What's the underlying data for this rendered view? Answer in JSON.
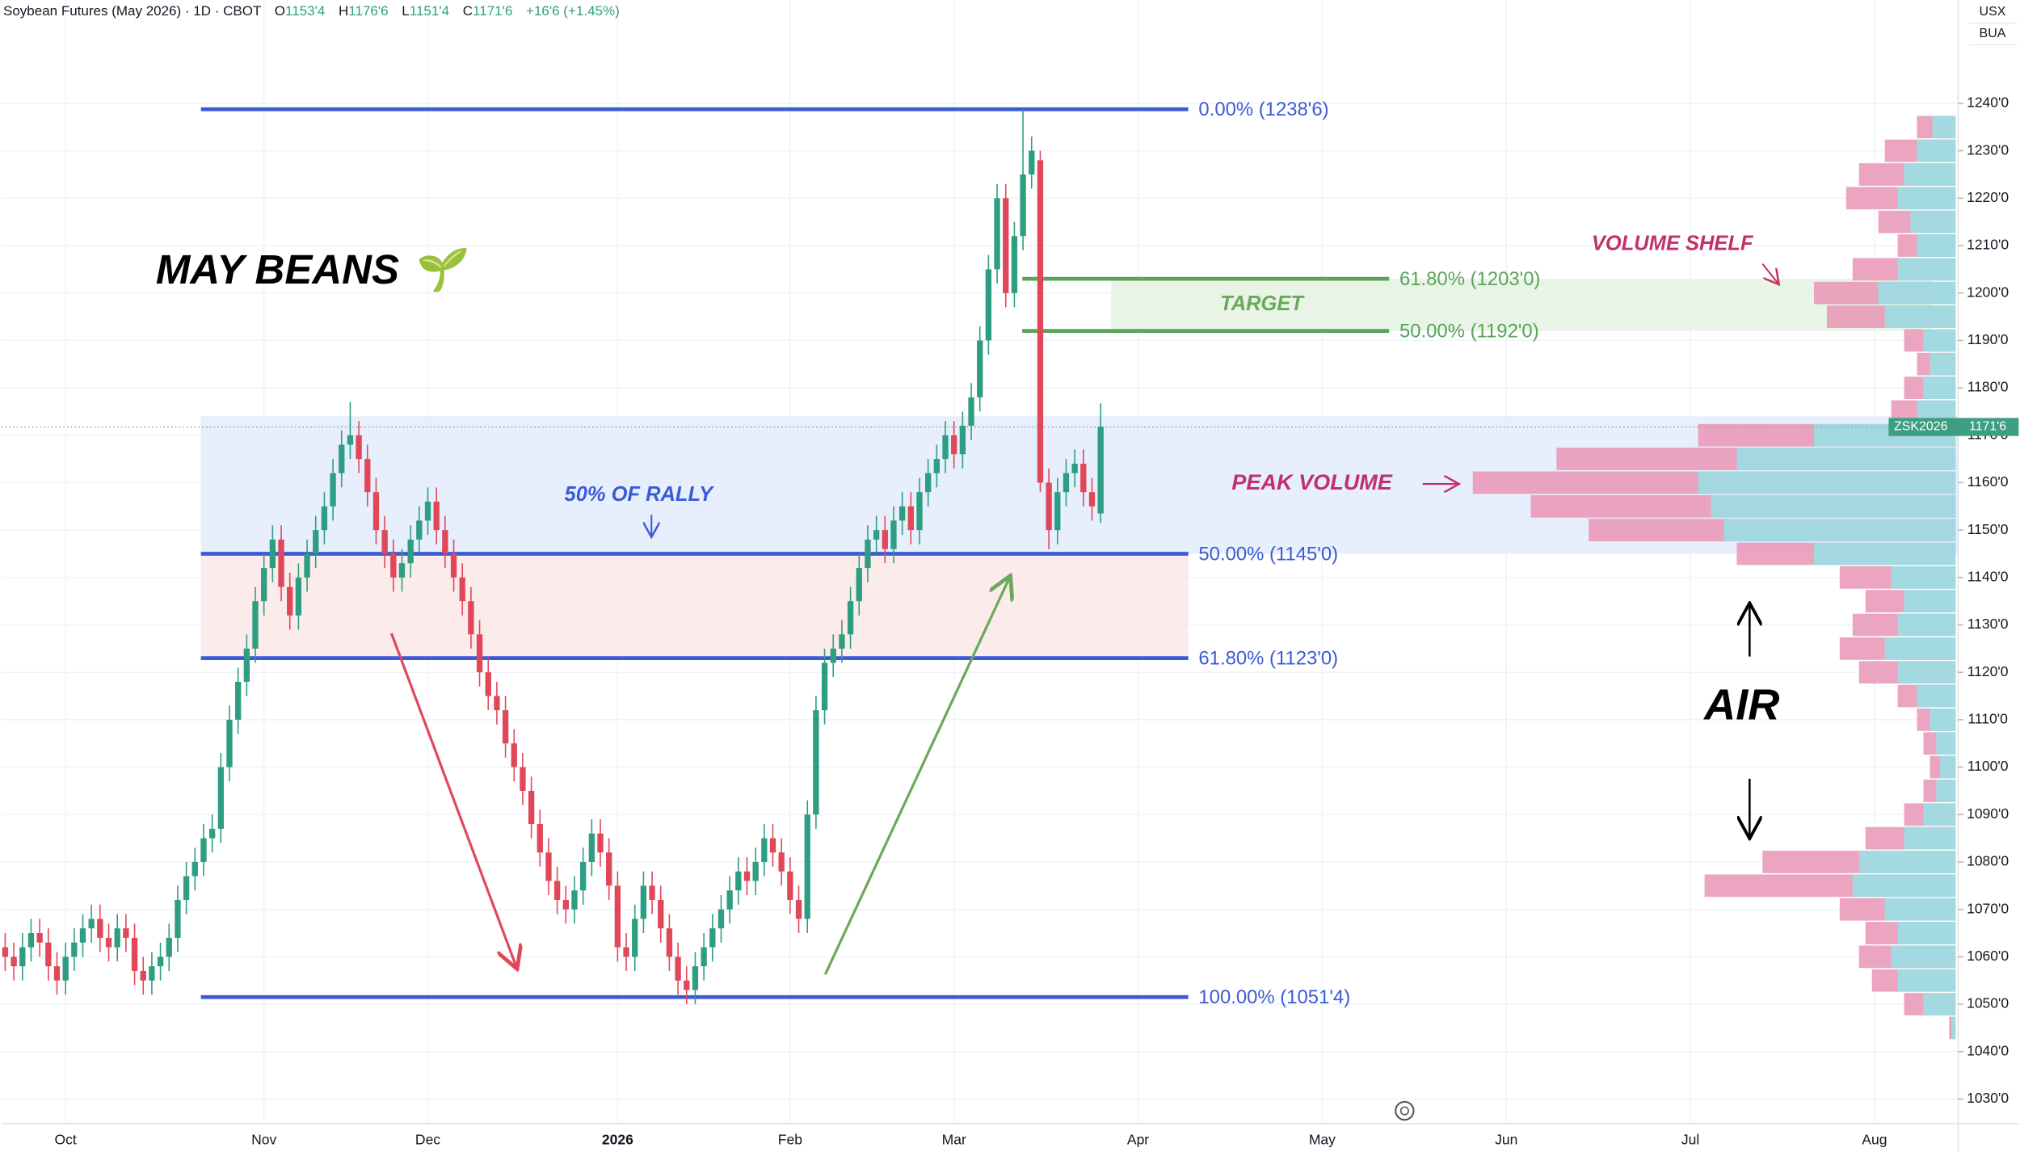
{
  "header": {
    "title": "Soybean Futures (May 2026) · 1D · CBOT",
    "ohlc": [
      {
        "key": "O",
        "value": "1153'4"
      },
      {
        "key": "H",
        "value": "1176'6"
      },
      {
        "key": "L",
        "value": "1151'4"
      },
      {
        "key": "C",
        "value": "1171'6"
      }
    ],
    "change": "+16'6 (+1.45%)"
  },
  "scale_labels": [
    "USX",
    "BUA"
  ],
  "chart_data": {
    "type": "candlestick",
    "categories": [
      null,
      null,
      null,
      null,
      null,
      null,
      null,
      "Oct",
      null,
      null,
      null,
      null,
      null,
      null,
      null,
      null,
      null,
      null,
      null,
      null,
      null,
      null,
      null,
      null,
      null,
      null,
      null,
      null,
      null,
      null,
      "Nov",
      null,
      null,
      null,
      null,
      null,
      null,
      null,
      null,
      null,
      null,
      null,
      null,
      null,
      null,
      null,
      null,
      null,
      null,
      "Dec",
      null,
      null,
      null,
      null,
      null,
      null,
      null,
      null,
      null,
      null,
      null,
      null,
      null,
      null,
      null,
      null,
      null,
      null,
      null,
      null,
      null,
      "2026",
      null,
      null,
      null,
      null,
      null,
      null,
      null,
      null,
      null,
      null,
      null,
      null,
      null,
      null,
      null,
      null,
      null,
      null,
      null,
      "Feb",
      null,
      null,
      null,
      null,
      null,
      null,
      null,
      null,
      null,
      null,
      null,
      null,
      null,
      null,
      null,
      null,
      null,
      null,
      "Mar",
      null,
      null,
      null,
      null,
      null,
      null,
      null,
      null,
      null,
      null,
      null,
      null,
      null,
      null,
      null,
      null,
      null
    ],
    "future_categories": [
      "Apr",
      "May",
      "Jun",
      "Jul",
      "Aug"
    ],
    "open": [
      1062,
      1060,
      1058,
      1062,
      1065,
      1063,
      1058,
      1055,
      1060,
      1063,
      1066,
      1068,
      1064,
      1062,
      1066,
      1064,
      1057,
      1055,
      1058,
      1060,
      1064,
      1072,
      1077,
      1080,
      1085,
      1087,
      1100,
      1110,
      1118,
      1125,
      1135,
      1142,
      1148,
      1138,
      1132,
      1140,
      1145,
      1150,
      1155,
      1162,
      1168,
      1170,
      1165,
      1158,
      1150,
      1145,
      1140,
      1143,
      1148,
      1152,
      1156,
      1150,
      1145,
      1140,
      1135,
      1128,
      1120,
      1115,
      1112,
      1105,
      1100,
      1095,
      1088,
      1082,
      1076,
      1072,
      1070,
      1074,
      1080,
      1086,
      1082,
      1075,
      1062,
      1060,
      1068,
      1075,
      1072,
      1066,
      1060,
      1055,
      1053,
      1058,
      1062,
      1066,
      1070,
      1074,
      1078,
      1076,
      1080,
      1085,
      1082,
      1078,
      1072,
      1068,
      1090,
      1112,
      1122,
      1125,
      1128,
      1135,
      1142,
      1148,
      1150,
      1146,
      1152,
      1155,
      1150,
      1158,
      1162,
      1165,
      1170,
      1166,
      1172,
      1178,
      1190,
      1205,
      1220,
      1200,
      1212,
      1225,
      1228,
      1160,
      1150,
      1158,
      1162,
      1164,
      1158,
      1153.5
    ],
    "high": [
      1065,
      1063,
      1065,
      1068,
      1068,
      1066,
      1061,
      1063,
      1066,
      1069,
      1071,
      1071,
      1067,
      1069,
      1069,
      1067,
      1060,
      1061,
      1063,
      1067,
      1075,
      1080,
      1083,
      1088,
      1090,
      1103,
      1113,
      1121,
      1128,
      1138,
      1145,
      1151,
      1151,
      1141,
      1143,
      1148,
      1153,
      1158,
      1165,
      1171,
      1177,
      1173,
      1168,
      1161,
      1153,
      1148,
      1146,
      1151,
      1155,
      1159,
      1159,
      1153,
      1148,
      1143,
      1138,
      1131,
      1123,
      1118,
      1115,
      1108,
      1103,
      1098,
      1091,
      1085,
      1079,
      1075,
      1077,
      1083,
      1089,
      1089,
      1085,
      1078,
      1065,
      1071,
      1078,
      1078,
      1075,
      1069,
      1063,
      1058,
      1061,
      1065,
      1069,
      1073,
      1077,
      1081,
      1081,
      1083,
      1088,
      1088,
      1085,
      1081,
      1075,
      1093,
      1115,
      1125,
      1128,
      1131,
      1138,
      1145,
      1151,
      1153,
      1153,
      1155,
      1158,
      1158,
      1161,
      1165,
      1168,
      1173,
      1173,
      1175,
      1181,
      1193,
      1208,
      1223,
      1223,
      1215,
      1238.75,
      1233,
      1230,
      1163,
      1161,
      1165,
      1167,
      1167,
      1161,
      1176.75
    ],
    "low": [
      1057,
      1055,
      1055,
      1059,
      1060,
      1055,
      1052,
      1052,
      1057,
      1060,
      1063,
      1061,
      1059,
      1059,
      1061,
      1054,
      1052,
      1052,
      1055,
      1057,
      1061,
      1069,
      1074,
      1077,
      1082,
      1084,
      1097,
      1107,
      1115,
      1122,
      1132,
      1139,
      1135,
      1129,
      1129,
      1137,
      1142,
      1147,
      1152,
      1159,
      1165,
      1162,
      1155,
      1147,
      1142,
      1137,
      1137,
      1140,
      1145,
      1149,
      1147,
      1142,
      1137,
      1132,
      1125,
      1117,
      1112,
      1109,
      1102,
      1097,
      1092,
      1085,
      1079,
      1073,
      1069,
      1067,
      1067,
      1071,
      1077,
      1079,
      1072,
      1059,
      1057,
      1057,
      1065,
      1069,
      1063,
      1057,
      1052,
      1050,
      1050,
      1055,
      1059,
      1063,
      1067,
      1071,
      1073,
      1073,
      1077,
      1079,
      1075,
      1069,
      1065,
      1065,
      1087,
      1109,
      1119,
      1122,
      1125,
      1132,
      1139,
      1145,
      1143,
      1143,
      1149,
      1147,
      1147,
      1155,
      1159,
      1162,
      1163,
      1163,
      1169,
      1175,
      1187,
      1202,
      1197,
      1197,
      1209,
      1222,
      1158,
      1146,
      1147,
      1155,
      1159,
      1155,
      1152,
      1151.5
    ],
    "close": [
      1060,
      1058,
      1062,
      1065,
      1063,
      1058,
      1055,
      1060,
      1063,
      1066,
      1068,
      1064,
      1062,
      1066,
      1064,
      1057,
      1055,
      1058,
      1060,
      1064,
      1072,
      1077,
      1080,
      1085,
      1087,
      1100,
      1110,
      1118,
      1125,
      1135,
      1142,
      1148,
      1138,
      1132,
      1140,
      1145,
      1150,
      1155,
      1162,
      1168,
      1170,
      1165,
      1158,
      1150,
      1145,
      1140,
      1143,
      1148,
      1152,
      1156,
      1150,
      1145,
      1140,
      1135,
      1128,
      1120,
      1115,
      1112,
      1105,
      1100,
      1095,
      1088,
      1082,
      1076,
      1072,
      1070,
      1074,
      1080,
      1086,
      1082,
      1075,
      1062,
      1060,
      1068,
      1075,
      1072,
      1066,
      1060,
      1055,
      1053,
      1058,
      1062,
      1066,
      1070,
      1074,
      1078,
      1076,
      1080,
      1085,
      1082,
      1078,
      1072,
      1068,
      1090,
      1112,
      1122,
      1125,
      1128,
      1135,
      1142,
      1148,
      1150,
      1146,
      1152,
      1155,
      1150,
      1158,
      1162,
      1165,
      1170,
      1166,
      1172,
      1178,
      1190,
      1205,
      1220,
      1200,
      1212,
      1225,
      1230,
      1160,
      1150,
      1158,
      1162,
      1164,
      1158,
      1155,
      1171.75
    ],
    "up_color": "#2e9e82",
    "down_color": "#e0485a",
    "ylim": [
      1024.8,
      1261.8
    ],
    "yticks": [
      {
        "value": 1030,
        "label": "1030'0"
      },
      {
        "value": 1040,
        "label": "1040'0"
      },
      {
        "value": 1050,
        "label": "1050'0"
      },
      {
        "value": 1060,
        "label": "1060'0"
      },
      {
        "value": 1070,
        "label": "1070'0"
      },
      {
        "value": 1080,
        "label": "1080'0"
      },
      {
        "value": 1090,
        "label": "1090'0"
      },
      {
        "value": 1100,
        "label": "1100'0"
      },
      {
        "value": 1110,
        "label": "1110'0"
      },
      {
        "value": 1120,
        "label": "1120'0"
      },
      {
        "value": 1130,
        "label": "1130'0"
      },
      {
        "value": 1140,
        "label": "1140'0"
      },
      {
        "value": 1150,
        "label": "1150'0"
      },
      {
        "value": 1160,
        "label": "1160'0"
      },
      {
        "value": 1170,
        "label": "1170'0"
      },
      {
        "value": 1180,
        "label": "1180'0"
      },
      {
        "value": 1190,
        "label": "1190'0"
      },
      {
        "value": 1200,
        "label": "1200'0"
      },
      {
        "value": 1210,
        "label": "1210'0"
      },
      {
        "value": 1220,
        "label": "1220'0"
      },
      {
        "value": 1230,
        "label": "1230'0"
      },
      {
        "value": 1240,
        "label": "1240'0"
      }
    ],
    "grid": true,
    "last_price": {
      "symbol": "ZSK2026",
      "value": 1171.75,
      "label": "1171'6",
      "color": "#3d9e82"
    },
    "fib_levels": [
      {
        "value": 1238.75,
        "label": "0.00% (1238'6)",
        "color": "#3b5bd6"
      },
      {
        "value": 1145,
        "label": "50.00% (1145'0)",
        "color": "#3b5bd6"
      },
      {
        "value": 1123,
        "label": "61.80% (1123'0)",
        "color": "#3b5bd6"
      },
      {
        "value": 1051.5,
        "label": "100.00% (1051'4)",
        "color": "#3b5bd6"
      },
      {
        "value": 1203,
        "label": "61.80% (1203'0)",
        "color": "#5aa35a"
      },
      {
        "value": 1192,
        "label": "50.00% (1192'0)",
        "color": "#5aa35a"
      }
    ],
    "zones": [
      {
        "from": 1145,
        "to": 1174,
        "color": "#e3ebfb"
      },
      {
        "from": 1123,
        "to": 1145,
        "color": "#fbe7e8"
      },
      {
        "from": 1192,
        "to": 1203,
        "color": "#e4f3e2",
        "label": "TARGET"
      }
    ],
    "annotations": [
      {
        "text": "MAY BEANS 🌱",
        "color": "#000000"
      },
      {
        "text": "50% OF RALLY",
        "color": "#3b5bd6"
      },
      {
        "text": "VOLUME SHELF",
        "color": "#c2306a"
      },
      {
        "text": "PEAK VOLUME",
        "color": "#c2306a"
      },
      {
        "text": "AIR",
        "color": "#000000"
      }
    ],
    "volume_profile": {
      "prices": [
        1045,
        1050,
        1055,
        1060,
        1065,
        1070,
        1075,
        1080,
        1085,
        1090,
        1095,
        1100,
        1105,
        1110,
        1115,
        1120,
        1125,
        1130,
        1135,
        1140,
        1145,
        1150,
        1155,
        1160,
        1165,
        1170,
        1175,
        1180,
        1185,
        1190,
        1195,
        1200,
        1205,
        1210,
        1215,
        1220,
        1225,
        1230,
        1235
      ],
      "total": [
        5,
        40,
        65,
        75,
        70,
        90,
        195,
        150,
        70,
        40,
        25,
        20,
        25,
        30,
        45,
        75,
        90,
        80,
        70,
        90,
        170,
        285,
        330,
        375,
        310,
        200,
        50,
        40,
        30,
        40,
        100,
        110,
        80,
        45,
        60,
        85,
        75,
        55,
        30
      ],
      "up": [
        3,
        25,
        45,
        50,
        45,
        55,
        80,
        75,
        40,
        25,
        15,
        12,
        15,
        20,
        30,
        45,
        55,
        45,
        40,
        50,
        110,
        180,
        190,
        200,
        170,
        110,
        30,
        25,
        20,
        25,
        55,
        60,
        45,
        30,
        35,
        45,
        40,
        30,
        18
      ],
      "total_color": "#e995b5",
      "up_color": "#9fdbe2"
    }
  }
}
